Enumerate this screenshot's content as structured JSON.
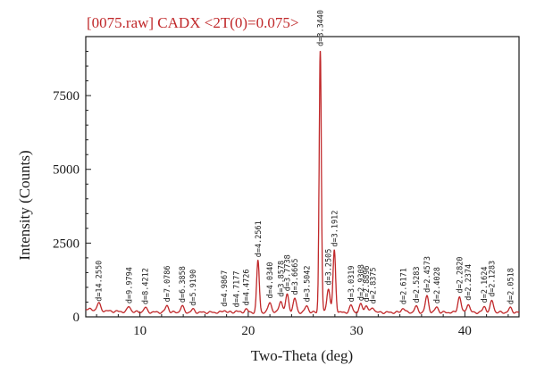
{
  "chart_data": {
    "type": "line",
    "title": "[0075.raw] CADX <2T(0)=0.075>",
    "xlabel": "Two-Theta (deg)",
    "ylabel": "Intensity (Counts)",
    "xlim": [
      5,
      45
    ],
    "ylim": [
      0,
      9500
    ],
    "xticks": [
      10,
      20,
      30,
      40
    ],
    "xtick_labels": [
      "10",
      "20",
      "30",
      "40"
    ],
    "yticks": [
      0,
      2500,
      5000,
      7500
    ],
    "ytick_labels": [
      "0",
      "2500",
      "5000",
      "7500"
    ],
    "grid": false,
    "baseline": 150,
    "colors": {
      "trace": "#c0282a",
      "title": "#c0282a",
      "axes": "#1a1a1a"
    },
    "peaks": [
      {
        "x": 6.2,
        "y": 400,
        "width": 0.15,
        "label": "d=14.2550"
      },
      {
        "x": 9.0,
        "y": 330,
        "width": 0.15,
        "label": "d=9.9794"
      },
      {
        "x": 10.5,
        "y": 300,
        "width": 0.15,
        "label": "d=8.4212"
      },
      {
        "x": 12.5,
        "y": 380,
        "width": 0.15,
        "label": "d=7.0786"
      },
      {
        "x": 13.9,
        "y": 360,
        "width": 0.15,
        "label": "d=6.3858"
      },
      {
        "x": 14.9,
        "y": 250,
        "width": 0.15,
        "label": "d=5.9190"
      },
      {
        "x": 17.8,
        "y": 220,
        "width": 0.15,
        "label": "d=4.9867"
      },
      {
        "x": 18.9,
        "y": 200,
        "width": 0.15,
        "label": "d=4.7177"
      },
      {
        "x": 19.8,
        "y": 260,
        "width": 0.15,
        "label": "d=4.4726"
      },
      {
        "x": 20.9,
        "y": 1900,
        "width": 0.12,
        "label": "d=4.2561"
      },
      {
        "x": 22.0,
        "y": 500,
        "width": 0.15,
        "label": "d=4.0340"
      },
      {
        "x": 23.0,
        "y": 550,
        "width": 0.15,
        "label": "d=3.8578"
      },
      {
        "x": 23.6,
        "y": 750,
        "width": 0.15,
        "label": "d=3.7738"
      },
      {
        "x": 24.3,
        "y": 620,
        "width": 0.15,
        "label": "d=3.6665"
      },
      {
        "x": 25.4,
        "y": 380,
        "width": 0.15,
        "label": "d=3.5042"
      },
      {
        "x": 26.65,
        "y": 9050,
        "width": 0.1,
        "label": "d=3.3440"
      },
      {
        "x": 27.4,
        "y": 950,
        "width": 0.15,
        "label": "d=3.2505"
      },
      {
        "x": 27.95,
        "y": 2250,
        "width": 0.12,
        "label": "d=3.1912"
      },
      {
        "x": 29.5,
        "y": 380,
        "width": 0.15,
        "label": "d=3.0319"
      },
      {
        "x": 30.4,
        "y": 420,
        "width": 0.15,
        "label": "d=2.9308"
      },
      {
        "x": 30.9,
        "y": 380,
        "width": 0.15,
        "label": "d=2.8896"
      },
      {
        "x": 31.5,
        "y": 320,
        "width": 0.15,
        "label": "d=2.8375"
      },
      {
        "x": 34.3,
        "y": 300,
        "width": 0.15,
        "label": "d=2.6171"
      },
      {
        "x": 35.5,
        "y": 350,
        "width": 0.15,
        "label": "d=2.5283"
      },
      {
        "x": 36.5,
        "y": 700,
        "width": 0.15,
        "label": "d=2.4573"
      },
      {
        "x": 37.4,
        "y": 330,
        "width": 0.15,
        "label": "d=2.4028"
      },
      {
        "x": 39.5,
        "y": 680,
        "width": 0.15,
        "label": "d=2.2820"
      },
      {
        "x": 40.3,
        "y": 430,
        "width": 0.15,
        "label": "d=2.2374"
      },
      {
        "x": 41.8,
        "y": 350,
        "width": 0.15,
        "label": "d=2.1624"
      },
      {
        "x": 42.5,
        "y": 550,
        "width": 0.15,
        "label": "d=2.1283"
      },
      {
        "x": 44.2,
        "y": 300,
        "width": 0.15,
        "label": "d=2.0518"
      }
    ]
  }
}
